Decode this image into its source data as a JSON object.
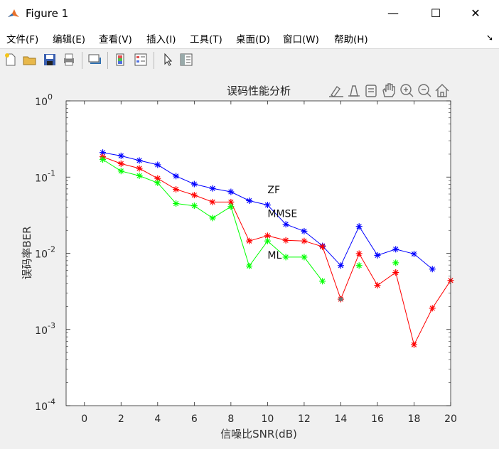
{
  "window": {
    "title": "Figure 1",
    "minimize": "—",
    "maximize": "☐",
    "close": "✕"
  },
  "menu": [
    "文件(F)",
    "编辑(E)",
    "查看(V)",
    "插入(I)",
    "工具(T)",
    "桌面(D)",
    "窗口(W)",
    "帮助(H)"
  ],
  "toolbar": {
    "icons": [
      "new-file-icon",
      "open-folder-icon",
      "save-icon",
      "print-icon",
      "link-plot-icon",
      "colorbar-icon",
      "legend-icon",
      "edit-plot-arrow-icon",
      "property-inspector-icon"
    ]
  },
  "axes_toolbar": {
    "icons": [
      "brush-icon",
      "data-tips-icon",
      "datatip-box-icon",
      "pan-hand-icon",
      "zoom-in-icon",
      "zoom-out-icon",
      "home-restore-icon"
    ]
  },
  "colors": {
    "ZF": "#0000ff",
    "MMSE": "#ff0000",
    "ML": "#00ff00"
  },
  "chart_data": {
    "type": "line",
    "title": "误码性能分析",
    "xlabel": "信噪比SNR(dB)",
    "ylabel": "误码率BER",
    "xlim": [
      -1,
      20
    ],
    "ylim": [
      0.0001,
      1
    ],
    "yscale": "log",
    "grid": false,
    "xticks": [
      "0",
      "2",
      "4",
      "6",
      "8",
      "10",
      "12",
      "14",
      "16",
      "18",
      "20"
    ],
    "yticks": [
      {
        "base": "10",
        "exp": "0"
      },
      {
        "base": "10",
        "exp": "-1"
      },
      {
        "base": "10",
        "exp": "-2"
      },
      {
        "base": "10",
        "exp": "-3"
      },
      {
        "base": "10",
        "exp": "-4"
      }
    ],
    "series": [
      {
        "name": "ZF",
        "color": "#0000ff",
        "marker": "*",
        "x": [
          1,
          2,
          3,
          4,
          5,
          6,
          7,
          8,
          9,
          10,
          11,
          12,
          13,
          14,
          15,
          16,
          17,
          18,
          19
        ],
        "y": [
          0.21,
          0.19,
          0.165,
          0.145,
          0.103,
          0.081,
          0.071,
          0.064,
          0.049,
          0.043,
          0.024,
          0.0195,
          0.0125,
          0.0069,
          0.0225,
          0.0094,
          0.0113,
          0.0098,
          0.0062
        ]
      },
      {
        "name": "MMSE",
        "color": "#ff0000",
        "marker": "*",
        "x": [
          1,
          2,
          3,
          4,
          5,
          6,
          7,
          8,
          9,
          10,
          11,
          12,
          13,
          14,
          15,
          16,
          17,
          18,
          19,
          20
        ],
        "y": [
          0.185,
          0.15,
          0.13,
          0.096,
          0.069,
          0.058,
          0.047,
          0.047,
          0.0145,
          0.017,
          0.0148,
          0.0145,
          0.0122,
          0.0025,
          0.0099,
          0.0038,
          0.0056,
          0.00063,
          0.0019,
          0.0044
        ]
      },
      {
        "name": "ML",
        "color": "#00ff00",
        "marker": "*",
        "x": [
          1,
          2,
          3,
          4,
          5,
          6,
          7,
          8,
          9,
          10,
          11,
          12,
          13,
          14,
          15,
          16,
          17
        ],
        "y": [
          0.17,
          0.12,
          0.104,
          0.084,
          0.045,
          0.042,
          0.029,
          0.041,
          0.0068,
          0.0145,
          0.0089,
          0.0089,
          0.0043,
          null,
          0.0069,
          null,
          0.0075
        ]
      }
    ],
    "annotations": [
      {
        "text": "ZF",
        "x": 10,
        "y": 0.07
      },
      {
        "text": "MMSE",
        "x": 10,
        "y": 0.034
      },
      {
        "text": "ML",
        "x": 10,
        "y": 0.0097
      }
    ],
    "special_point": {
      "x": 14,
      "y": 0.0025,
      "color": "#707070"
    }
  }
}
